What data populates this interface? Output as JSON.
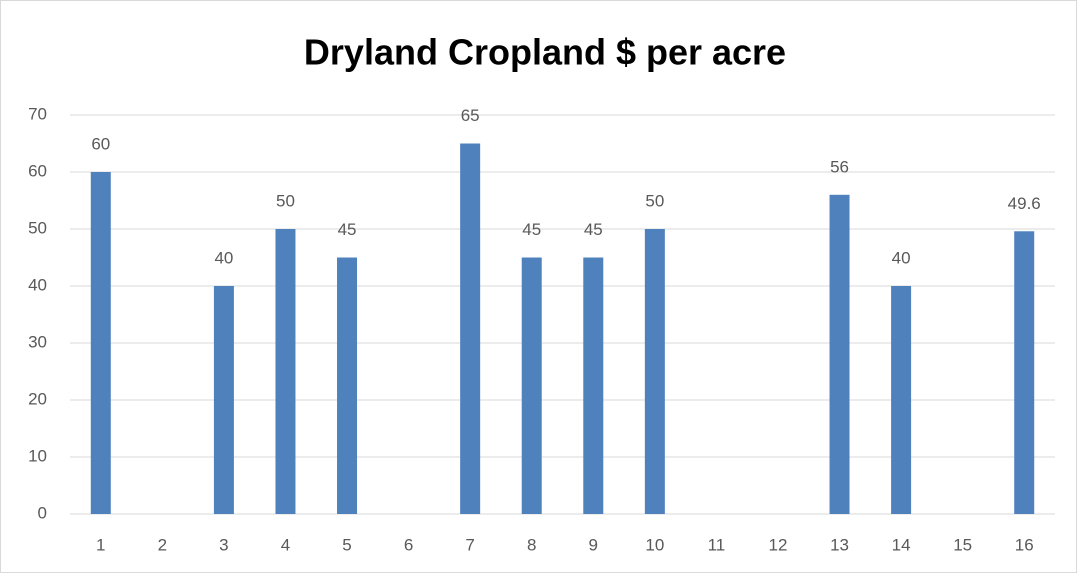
{
  "chart_data": {
    "type": "bar",
    "title": "Dryland Cropland $ per acre",
    "categories": [
      "1",
      "2",
      "3",
      "4",
      "5",
      "6",
      "7",
      "8",
      "9",
      "10",
      "11",
      "12",
      "13",
      "14",
      "15",
      "16"
    ],
    "values": [
      60,
      null,
      40,
      50,
      45,
      null,
      65,
      45,
      45,
      50,
      null,
      null,
      56,
      40,
      null,
      49.6
    ],
    "color": "#4f81bd",
    "ylim": [
      0,
      70
    ],
    "yticks": [
      0,
      10,
      20,
      30,
      40,
      50,
      60,
      70
    ],
    "grid": true
  }
}
